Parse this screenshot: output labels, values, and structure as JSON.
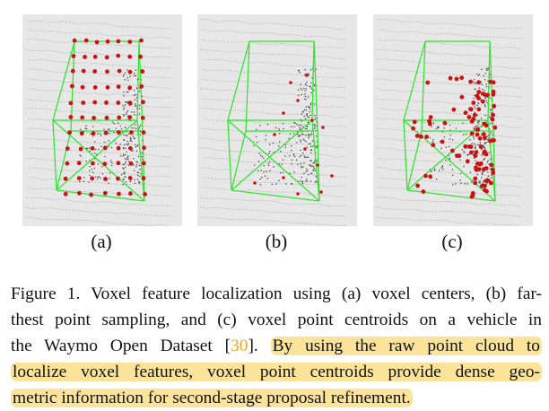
{
  "figure": {
    "panels": [
      {
        "id": "a",
        "label": "(a)"
      },
      {
        "id": "b",
        "label": "(b)"
      },
      {
        "id": "c",
        "label": "(c)"
      }
    ],
    "caption": {
      "line1": "Figure 1. Voxel feature localization using (a) voxel centers, (b) far-",
      "line2": "thest point sampling, and (c) voxel point centroids on a vehicle in",
      "line3_pre": "the Waymo Open Dataset [",
      "line3_cite": "30",
      "line3_post": "].",
      "line3_highlight": "By using the raw point cloud to",
      "line4": "localize voxel features, voxel point centroids provide dense geo-",
      "line5": "metric information for second-stage proposal refinement."
    },
    "colors": {
      "background_scan": "#e7e7e7",
      "box": "#33e533",
      "keypoint": "#cc1111",
      "highlight": "#fbe49a",
      "citation": "#e8a52c"
    }
  }
}
